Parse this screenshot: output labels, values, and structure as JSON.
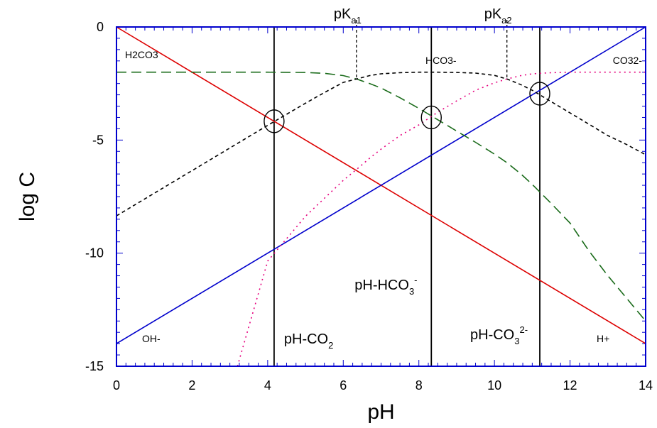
{
  "chart_data": {
    "type": "line",
    "title": "",
    "xlabel": "pH",
    "ylabel": "log C",
    "xlim": [
      0,
      14
    ],
    "ylim": [
      -15,
      0
    ],
    "xticks": [
      0,
      2,
      4,
      6,
      8,
      10,
      12,
      14
    ],
    "yticks": [
      0,
      -5,
      -10,
      -15
    ],
    "xtick_labels": [
      "0",
      "2",
      "4",
      "6",
      "8",
      "10",
      "12",
      "14"
    ],
    "ytick_labels": [
      "0",
      "-5",
      "-10",
      "-15"
    ],
    "colors": {
      "axis": "#0000cc",
      "h_plus": "#dd0000",
      "oh_minus": "#0000cc",
      "h2co3": "#1a6b1a",
      "hco3": "#000000",
      "co3": "#e6007e",
      "vline": "#000000"
    },
    "series": [
      {
        "name": "H+",
        "style": "solid",
        "color_key": "h_plus",
        "x": [
          0,
          14
        ],
        "y": [
          0,
          -14
        ]
      },
      {
        "name": "OH-",
        "style": "solid",
        "color_key": "oh_minus",
        "x": [
          0,
          14
        ],
        "y": [
          -14,
          0
        ]
      },
      {
        "name": "H2CO3",
        "style": "longdash",
        "color_key": "h2co3",
        "x": [
          0,
          1,
          2,
          3,
          4,
          5,
          5.5,
          6,
          6.35,
          6.7,
          7,
          7.5,
          8,
          8.5,
          9,
          9.5,
          10,
          10.33,
          10.7,
          11,
          11.5,
          12,
          12.5,
          13,
          13.5,
          14
        ],
        "y": [
          -2,
          -2,
          -2,
          -2,
          -2,
          -2.01,
          -2.05,
          -2.15,
          -2.3,
          -2.5,
          -2.7,
          -3.13,
          -3.6,
          -4.1,
          -4.6,
          -5.1,
          -5.62,
          -6.0,
          -6.5,
          -6.96,
          -7.8,
          -8.67,
          -9.9,
          -11.0,
          -12.0,
          -13.0
        ]
      },
      {
        "name": "HCO3-",
        "style": "shortdash",
        "color_key": "hco3",
        "x": [
          0,
          1,
          2,
          3,
          4,
          5,
          5.5,
          6,
          6.35,
          6.7,
          7,
          7.5,
          8,
          8.5,
          9,
          9.5,
          10,
          10.33,
          10.7,
          11,
          11.5,
          12,
          12.5,
          13,
          13.5,
          14
        ],
        "y": [
          -8.35,
          -7.35,
          -6.35,
          -5.35,
          -4.35,
          -3.37,
          -2.9,
          -2.45,
          -2.3,
          -2.15,
          -2.07,
          -2.02,
          -2.0,
          -2.0,
          -2.01,
          -2.04,
          -2.14,
          -2.3,
          -2.55,
          -2.8,
          -3.3,
          -3.8,
          -4.3,
          -4.8,
          -5.2,
          -5.65
        ]
      },
      {
        "name": "CO32-",
        "style": "dotted",
        "color_key": "co3",
        "x": [
          3.2,
          4,
          5,
          6,
          6.35,
          6.7,
          7,
          7.5,
          8,
          8.5,
          9,
          9.5,
          10,
          10.33,
          10.7,
          11,
          11.5,
          12,
          12.5,
          13,
          13.5,
          14
        ],
        "y": [
          -15,
          -10.35,
          -8.37,
          -6.78,
          -6.3,
          -5.8,
          -5.4,
          -4.8,
          -4.33,
          -3.77,
          -3.27,
          -2.8,
          -2.47,
          -2.3,
          -2.15,
          -2.07,
          -2.02,
          -2.0,
          -2.0,
          -2.0,
          -2.0,
          -2.0
        ]
      }
    ],
    "species_labels": [
      {
        "key": "h2co3",
        "text": "H2CO3"
      },
      {
        "key": "hco3",
        "text": "HCO3-"
      },
      {
        "key": "co3",
        "text": "CO32-"
      },
      {
        "key": "oh",
        "text": "OH-"
      },
      {
        "key": "h",
        "text": "H+"
      }
    ],
    "equivalence_points": [
      {
        "name": "pH-CO2",
        "x": 4.17,
        "y": -4.17,
        "label": "pH-CO",
        "sub": "2",
        "sup": ""
      },
      {
        "name": "pH-HCO3-",
        "x": 8.33,
        "y": -4.0,
        "label": "pH-HCO",
        "sub": "3",
        "sup": "-"
      },
      {
        "name": "pH-CO32-",
        "x": 11.2,
        "y": -2.95,
        "label": "pH-CO",
        "sub": "3",
        "sup": "2-"
      }
    ],
    "pka_markers": [
      {
        "name": "pKa1",
        "x": 6.35,
        "y": -2.3,
        "label": "pK",
        "sub": "a1"
      },
      {
        "name": "pKa2",
        "x": 10.33,
        "y": -2.3,
        "label": "pK",
        "sub": "a2"
      }
    ]
  }
}
